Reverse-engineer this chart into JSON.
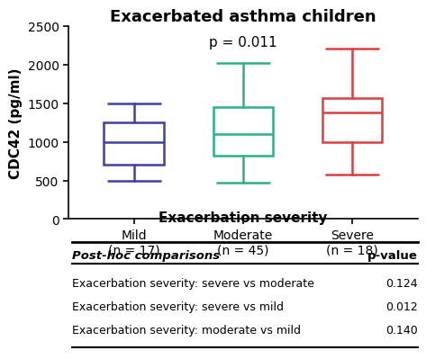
{
  "title": "Exacerbated asthma children",
  "pvalue_text": "p = 0.011",
  "ylabel": "CDC42 (pg/ml)",
  "ylim": [
    0,
    2500
  ],
  "yticks": [
    0,
    500,
    1000,
    1500,
    2000,
    2500
  ],
  "groups": [
    "Mild\n(n = 17)",
    "Moderate\n(n = 45)",
    "Severe\n(n = 18)"
  ],
  "box_colors": [
    "#4040a0",
    "#2ab08a",
    "#d94040"
  ],
  "boxes": [
    {
      "whislo": 500,
      "q1": 700,
      "med": 1000,
      "q3": 1250,
      "whishi": 1500
    },
    {
      "whislo": 470,
      "q1": 820,
      "med": 1100,
      "q3": 1450,
      "whishi": 2020
    },
    {
      "whislo": 580,
      "q1": 1000,
      "med": 1380,
      "q3": 1560,
      "whishi": 2200
    }
  ],
  "table_title": "Exacerbation severity",
  "table_headers": [
    "Post-hoc comparisons",
    "p-value"
  ],
  "table_rows": [
    [
      "Exacerbation severity: severe vs moderate",
      "0.124"
    ],
    [
      "Exacerbation severity: severe vs mild",
      "0.012"
    ],
    [
      "Exacerbation severity: moderate vs mild",
      "0.140"
    ]
  ],
  "background_color": "#ffffff"
}
